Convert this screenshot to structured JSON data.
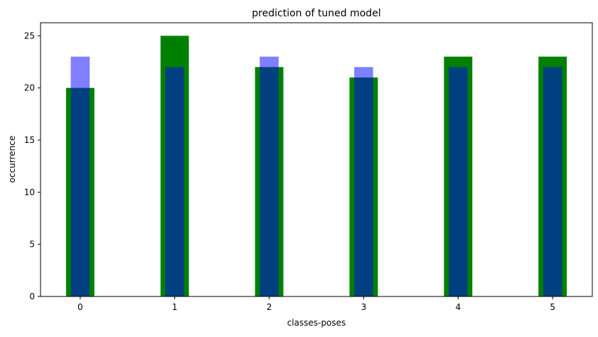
{
  "chart_data": {
    "type": "bar",
    "title": "prediction of tuned model",
    "xlabel": "classes-poses",
    "ylabel": "occurrence",
    "categories": [
      "0",
      "1",
      "2",
      "3",
      "4",
      "5"
    ],
    "x": [
      0,
      1,
      2,
      3,
      4,
      5
    ],
    "xlim": [
      -0.42,
      5.42
    ],
    "ylim": [
      0,
      26.25
    ],
    "yticks": [
      0,
      5,
      10,
      15,
      20,
      25
    ],
    "grid": false,
    "series": [
      {
        "values": [
          20,
          25,
          22,
          21,
          23,
          23
        ],
        "color": "#008000",
        "width": 0.3,
        "opacity": 1
      },
      {
        "values": [
          23,
          22,
          23,
          22,
          22,
          22
        ],
        "color": "#0000ff",
        "width": 0.2,
        "opacity": 0.5
      }
    ]
  }
}
